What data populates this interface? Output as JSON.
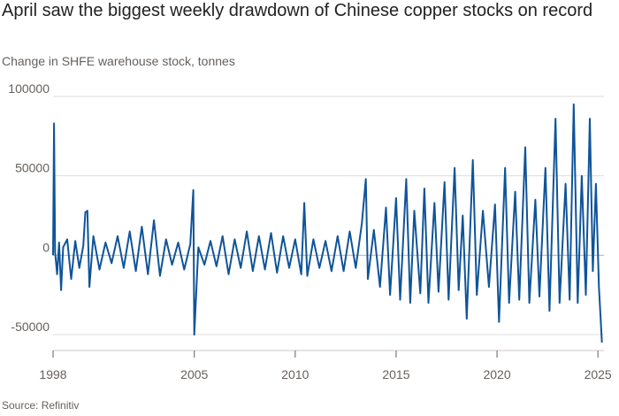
{
  "header": {
    "title": "April saw the biggest weekly drawdown of Chinese copper stocks on record",
    "subtitle": "Change in SHFE warehouse stock, tonnes"
  },
  "footer": {
    "source": "Source: Refinitiv"
  },
  "colors": {
    "series": "#0f5499",
    "grid": "#e0dcd8",
    "text": "#66605c"
  },
  "chart_data": {
    "type": "line",
    "title": "April saw the biggest weekly drawdown of Chinese copper stocks on record",
    "subtitle": "Change in SHFE warehouse stock, tonnes",
    "xlabel": "",
    "ylabel": "",
    "xlim": [
      1998,
      2025.3
    ],
    "ylim": [
      -60000,
      105000
    ],
    "y_ticks": [
      100000,
      50000,
      0,
      -50000
    ],
    "y_tick_labels": [
      "100000",
      "50000",
      "0",
      "-50000"
    ],
    "x_ticks": [
      1998,
      2005,
      2010,
      2015,
      2020,
      2025
    ],
    "x_tick_labels": [
      "1998",
      "2005",
      "2010",
      "2015",
      "2020",
      "2025"
    ],
    "grid": "horizontal",
    "series": [
      {
        "points": [
          [
            1998.0,
            0
          ],
          [
            1998.05,
            83000
          ],
          [
            1998.1,
            2000
          ],
          [
            1998.2,
            -12000
          ],
          [
            1998.3,
            8000
          ],
          [
            1998.4,
            -22000
          ],
          [
            1998.5,
            5000
          ],
          [
            1998.7,
            10000
          ],
          [
            1998.9,
            -15000
          ],
          [
            1999.1,
            9000
          ],
          [
            1999.3,
            -8000
          ],
          [
            1999.5,
            6000
          ],
          [
            1999.6,
            27000
          ],
          [
            1999.7,
            28000
          ],
          [
            1999.8,
            -20000
          ],
          [
            2000.0,
            12000
          ],
          [
            2000.3,
            -9000
          ],
          [
            2000.6,
            8000
          ],
          [
            2000.9,
            -5000
          ],
          [
            2001.2,
            12000
          ],
          [
            2001.5,
            -8000
          ],
          [
            2001.8,
            15000
          ],
          [
            2002.1,
            -10000
          ],
          [
            2002.4,
            18000
          ],
          [
            2002.7,
            -12000
          ],
          [
            2003.0,
            22000
          ],
          [
            2003.3,
            -13000
          ],
          [
            2003.6,
            10000
          ],
          [
            2003.9,
            -6000
          ],
          [
            2004.2,
            8000
          ],
          [
            2004.5,
            -9000
          ],
          [
            2004.8,
            7000
          ],
          [
            2004.95,
            41000
          ],
          [
            2005.0,
            -50000
          ],
          [
            2005.2,
            5000
          ],
          [
            2005.5,
            -6000
          ],
          [
            2005.8,
            9000
          ],
          [
            2006.1,
            -7000
          ],
          [
            2006.4,
            12000
          ],
          [
            2006.7,
            -12000
          ],
          [
            2007.0,
            10000
          ],
          [
            2007.3,
            -8000
          ],
          [
            2007.6,
            15000
          ],
          [
            2007.9,
            -10000
          ],
          [
            2008.2,
            12000
          ],
          [
            2008.5,
            -9000
          ],
          [
            2008.8,
            14000
          ],
          [
            2009.1,
            -11000
          ],
          [
            2009.4,
            12000
          ],
          [
            2009.7,
            -8000
          ],
          [
            2010.0,
            10000
          ],
          [
            2010.3,
            -12000
          ],
          [
            2010.45,
            33000
          ],
          [
            2010.6,
            -13000
          ],
          [
            2010.9,
            10000
          ],
          [
            2011.2,
            -8000
          ],
          [
            2011.5,
            9000
          ],
          [
            2011.8,
            -10000
          ],
          [
            2012.1,
            12000
          ],
          [
            2012.4,
            -10000
          ],
          [
            2012.7,
            15000
          ],
          [
            2013.0,
            -8000
          ],
          [
            2013.3,
            20000
          ],
          [
            2013.5,
            48000
          ],
          [
            2013.6,
            -15000
          ],
          [
            2013.9,
            16000
          ],
          [
            2014.2,
            -20000
          ],
          [
            2014.5,
            30000
          ],
          [
            2014.7,
            -25000
          ],
          [
            2015.0,
            36000
          ],
          [
            2015.2,
            -28000
          ],
          [
            2015.5,
            48000
          ],
          [
            2015.7,
            -30000
          ],
          [
            2015.9,
            28000
          ],
          [
            2016.2,
            -24000
          ],
          [
            2016.4,
            42000
          ],
          [
            2016.6,
            -30000
          ],
          [
            2016.9,
            33000
          ],
          [
            2017.1,
            -23000
          ],
          [
            2017.4,
            46000
          ],
          [
            2017.6,
            -28000
          ],
          [
            2017.9,
            55000
          ],
          [
            2018.1,
            -22000
          ],
          [
            2018.3,
            25000
          ],
          [
            2018.5,
            -40000
          ],
          [
            2018.8,
            60000
          ],
          [
            2019.0,
            -25000
          ],
          [
            2019.3,
            28000
          ],
          [
            2019.6,
            -20000
          ],
          [
            2019.9,
            32000
          ],
          [
            2020.1,
            -42000
          ],
          [
            2020.4,
            55000
          ],
          [
            2020.6,
            -30000
          ],
          [
            2020.9,
            40000
          ],
          [
            2021.1,
            -28000
          ],
          [
            2021.4,
            68000
          ],
          [
            2021.6,
            -30000
          ],
          [
            2021.9,
            35000
          ],
          [
            2022.1,
            -26000
          ],
          [
            2022.4,
            55000
          ],
          [
            2022.6,
            -35000
          ],
          [
            2022.9,
            86000
          ],
          [
            2023.1,
            -30000
          ],
          [
            2023.4,
            45000
          ],
          [
            2023.6,
            -28000
          ],
          [
            2023.8,
            95000
          ],
          [
            2024.0,
            -30000
          ],
          [
            2024.2,
            50000
          ],
          [
            2024.4,
            -25000
          ],
          [
            2024.6,
            86000
          ],
          [
            2024.75,
            -10000
          ],
          [
            2024.9,
            45000
          ],
          [
            2025.05,
            -20000
          ],
          [
            2025.2,
            -55000
          ]
        ]
      }
    ]
  }
}
